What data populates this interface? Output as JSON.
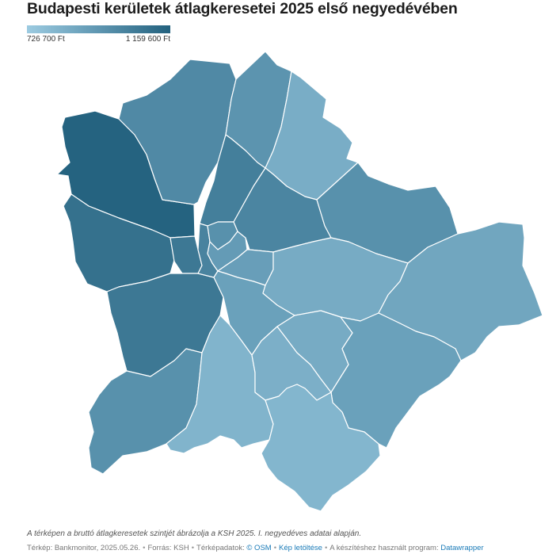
{
  "title": "Budapesti kerületek átlagkeresetei 2025 első negyedévében",
  "legend": {
    "min_label": "726 700 Ft",
    "max_label": "1 159 600 Ft",
    "color_min": "#9ccbe1",
    "color_mid": "#5e96b1",
    "color_max": "#23617e"
  },
  "caption": "A térképen a bruttó átlagkeresetek szintjét ábrázolja a KSH 2025. I. negyedéves adatai alapján.",
  "footer": {
    "map_credit": "Térkép: Bankmonitor, 2025.05.26.",
    "source": "Forrás: KSH",
    "map_data_prefix": "Térképadatok:",
    "osm_link": "© OSM",
    "download_link": "Kép letöltése",
    "tool_prefix": "A készítéshez használt program:",
    "tool_link": "Datawrapper"
  },
  "map": {
    "districts": [
      {
        "id": "II",
        "level": 0.98
      },
      {
        "id": "III",
        "level": 0.62
      },
      {
        "id": "IV",
        "level": 0.52
      },
      {
        "id": "XV",
        "level": 0.28
      },
      {
        "id": "XII",
        "level": 0.85
      },
      {
        "id": "I",
        "level": 0.78
      },
      {
        "id": "XIII",
        "level": 0.72
      },
      {
        "id": "V",
        "level": 0.68
      },
      {
        "id": "VI",
        "level": 0.55
      },
      {
        "id": "VII",
        "level": 0.45
      },
      {
        "id": "XIV",
        "level": 0.66
      },
      {
        "id": "XVI",
        "level": 0.55
      },
      {
        "id": "VIII",
        "level": 0.42
      },
      {
        "id": "IX",
        "level": 0.4
      },
      {
        "id": "X",
        "level": 0.3
      },
      {
        "id": "XVII",
        "level": 0.35
      },
      {
        "id": "XI",
        "level": 0.78
      },
      {
        "id": "XXII",
        "level": 0.55
      },
      {
        "id": "XXI",
        "level": 0.22
      },
      {
        "id": "XX",
        "level": 0.26
      },
      {
        "id": "XIX",
        "level": 0.3
      },
      {
        "id": "XVIII",
        "level": 0.4
      },
      {
        "id": "XXIII",
        "level": 0.2
      }
    ]
  }
}
